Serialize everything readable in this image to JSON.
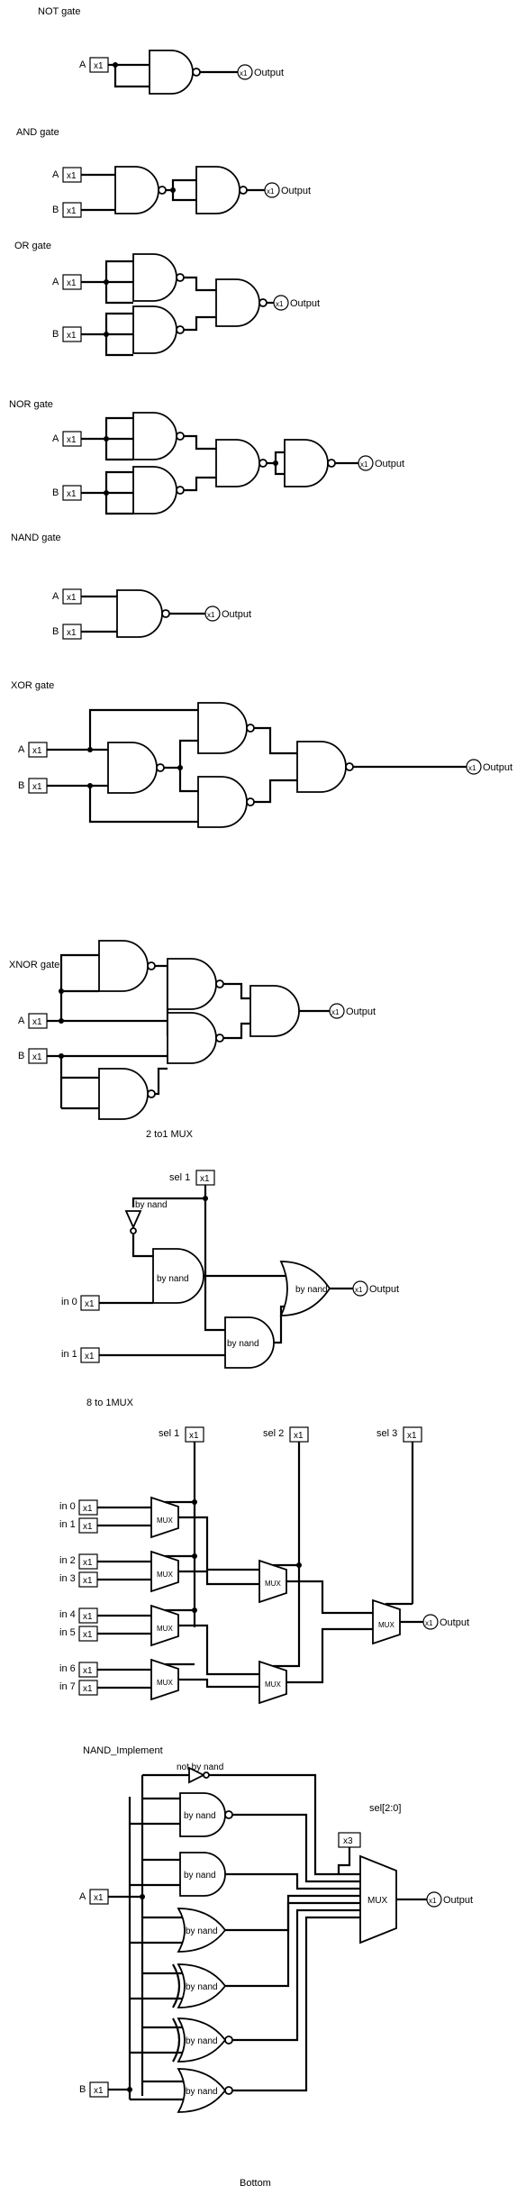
{
  "labels": {
    "not_title": "NOT gate",
    "and_title": "AND gate",
    "or_title": "OR gate",
    "nor_title": "NOR gate",
    "nand_title": "NAND gate",
    "xor_title": "XOR gate",
    "xnor_title": "XNOR gate",
    "mux2_title": "2 to1 MUX",
    "mux8_title": "8 to 1MUX",
    "nandimpl_title": "NAND_Implement",
    "bottom": "Bottom"
  },
  "pins": {
    "a": "A",
    "b": "B",
    "x1": "x1",
    "x3": "x3",
    "output": "Output",
    "sel": "sel 1",
    "in0": "in 0",
    "in1": "in 1",
    "sel1": "sel 1",
    "sel2": "sel 2",
    "sel3": "sel 3",
    "in_0": "in 0",
    "in_1": "in 1",
    "in_2": "in 2",
    "in_3": "in 3",
    "in_4": "in 4",
    "in_5": "in 5",
    "in_6": "in 6",
    "in_7": "in 7",
    "sel_bus": "sel[2:0]"
  },
  "gate_labels": {
    "by_nand": "by nand",
    "not_by_nand": "not by nand",
    "mux": "MUX"
  }
}
